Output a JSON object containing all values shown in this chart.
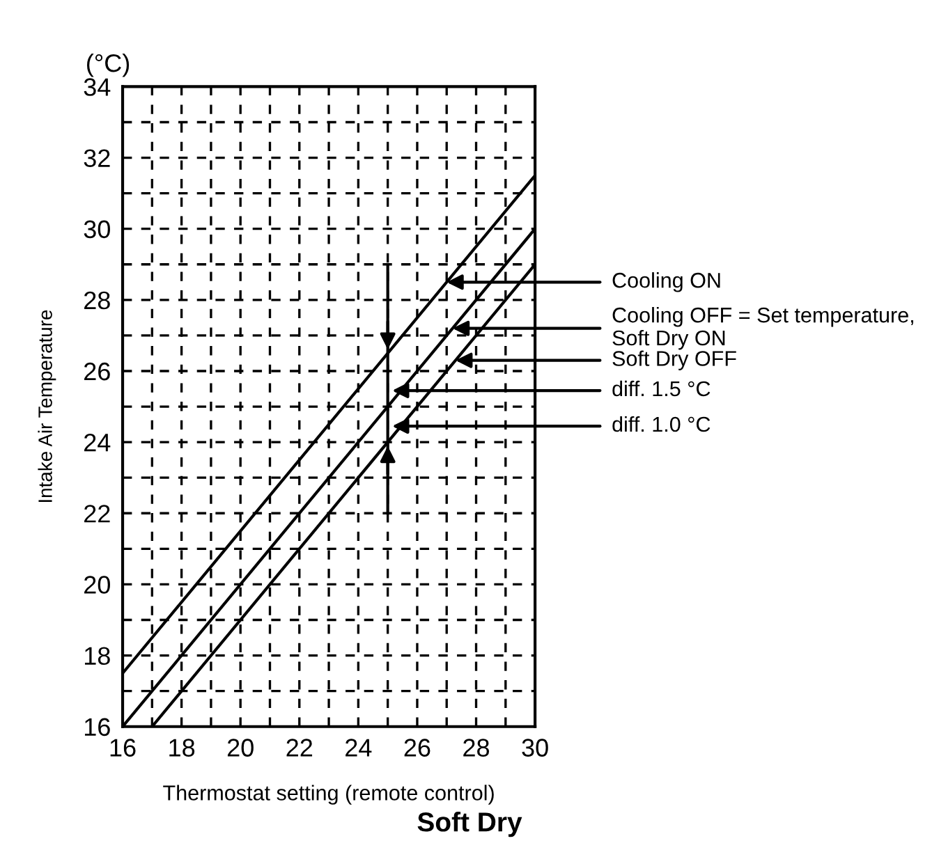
{
  "chart_data": {
    "type": "line",
    "title": "Soft Dry",
    "xlabel": "Thermostat setting (remote control)",
    "ylabel": "Intake Air Temperature",
    "series": [
      {
        "color": "#000000",
        "x": [
          16,
          30
        ],
        "values": [
          17.5,
          31.5
        ]
      },
      {
        "color": "#000000",
        "x": [
          16,
          30
        ],
        "values": [
          16,
          30
        ]
      },
      {
        "color": "#000000",
        "x": [
          17,
          30
        ],
        "values": [
          16,
          29
        ]
      }
    ],
    "xlim": [
      16,
      30
    ],
    "ylim": [
      16,
      34
    ],
    "xticks": [
      16,
      {
        "value": 17,
        "label": null
      },
      18,
      {
        "value": 19,
        "label": null
      },
      20,
      {
        "value": 21,
        "label": null
      },
      22,
      {
        "value": 23,
        "label": null
      },
      24,
      {
        "value": 25,
        "label": null
      },
      26,
      {
        "value": 27,
        "label": null
      },
      28,
      {
        "value": 29,
        "label": null
      },
      30
    ],
    "yticks": [
      16,
      {
        "value": 17,
        "label": null
      },
      18,
      {
        "value": 19,
        "label": null
      },
      20,
      {
        "value": 21,
        "label": null
      },
      22,
      {
        "value": 23,
        "label": null
      },
      24,
      {
        "value": 25,
        "label": null
      },
      26,
      {
        "value": 27,
        "label": null
      },
      28,
      {
        "value": 29,
        "label": null
      },
      30,
      {
        "value": 31,
        "label": null
      },
      32,
      {
        "value": 33,
        "label": null
      },
      34
    ],
    "grid": true,
    "line_style": "solid",
    "marker": "none",
    "annotations": [
      "(°C)",
      {
        "text": "Cooling ON",
        "x": 27,
        "y": 28.5
      },
      {
        "text": "Cooling OFF = Set temperature,\nSoft Dry ON",
        "x": 27.2,
        "y": 27.2
      },
      {
        "text": "Soft Dry OFF",
        "x": 27.3,
        "y": 26.3
      },
      "diff. 1.5 °C",
      "diff. 1.0 °C"
    ]
  }
}
